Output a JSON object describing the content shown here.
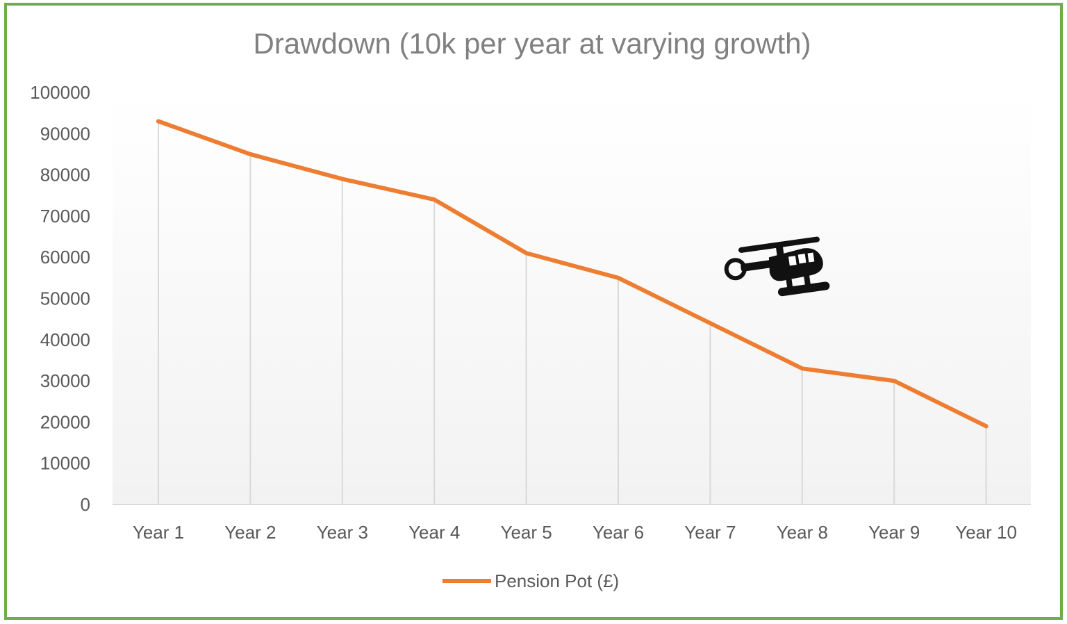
{
  "chart_data": {
    "type": "line",
    "title": "Drawdown (10k per year at varying growth)",
    "categories": [
      "Year 1",
      "Year 2",
      "Year 3",
      "Year 4",
      "Year 5",
      "Year 6",
      "Year 7",
      "Year 8",
      "Year 9",
      "Year 10"
    ],
    "series": [
      {
        "name": "Pension Pot (£)",
        "color": "#ed7d31",
        "values": [
          93000,
          85000,
          79000,
          74000,
          61000,
          55000,
          44000,
          33000,
          30000,
          19000
        ]
      }
    ],
    "ylim": [
      0,
      100000
    ],
    "yticks": [
      "0",
      "10000",
      "20000",
      "30000",
      "40000",
      "50000",
      "60000",
      "70000",
      "80000",
      "90000",
      "100000"
    ],
    "grid": "vertical drop lines",
    "legend": "bottom",
    "border_color": "#70ad47",
    "icon": "helicopter-icon"
  }
}
